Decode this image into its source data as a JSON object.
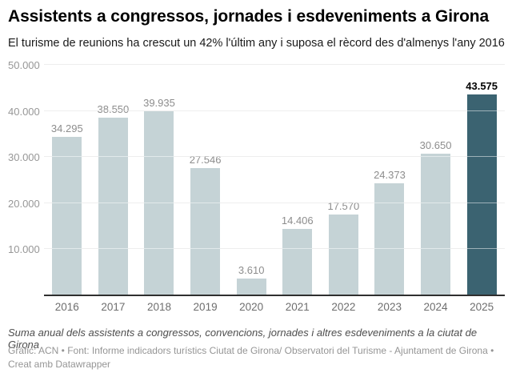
{
  "header": {
    "title": "Assistents a congressos, jornades i esdeveniments a Girona",
    "subtitle": "El turisme de reunions ha crescut un 42% l'últim any i suposa el rècord des d'almenys l'any 2016"
  },
  "chart_data": {
    "type": "bar",
    "title": "Assistents a congressos, jornades i esdeveniments a Girona",
    "subtitle": "El turisme de reunions ha crescut un 42% l'últim any i suposa el rècord des d'almenys l'any 2016",
    "categories": [
      "2016",
      "2017",
      "2018",
      "2019",
      "2020",
      "2021",
      "2022",
      "2023",
      "2024",
      "2025"
    ],
    "values": [
      34295,
      38550,
      39935,
      27546,
      3610,
      14406,
      17570,
      24373,
      30650,
      43575
    ],
    "value_labels": [
      "34.295",
      "38.550",
      "39.935",
      "27.546",
      "3.610",
      "14.406",
      "17.570",
      "24.373",
      "30.650",
      "43.575"
    ],
    "highlight_index": 9,
    "xlabel": "",
    "ylabel": "",
    "ylim": [
      0,
      50000
    ],
    "yticks": [
      10000,
      20000,
      30000,
      40000,
      50000
    ],
    "ytick_labels": [
      "10.000",
      "20.000",
      "30.000",
      "40.000",
      "50.000"
    ],
    "grid": true,
    "legend": "none",
    "colors": {
      "bar": "#c5d3d6",
      "highlight": "#3b6371",
      "gridline": "#dddddd",
      "baseline": "#2f2f2f",
      "value_label": "#8d8d8d",
      "highlight_value_label": "#000000",
      "axis_label": "#6e6e6e",
      "ytick_label": "#979797"
    }
  },
  "footer": {
    "note": "Suma anual dels assistents a congressos, convencions, jornades i altres esdeveniments a la ciutat de Girona",
    "byline": "Gràfic: ACN • Font: Informe indicadors turístics Ciutat de Girona/ Observatori del Turisme - Ajuntament de Girona • Creat amb Datawrapper"
  }
}
